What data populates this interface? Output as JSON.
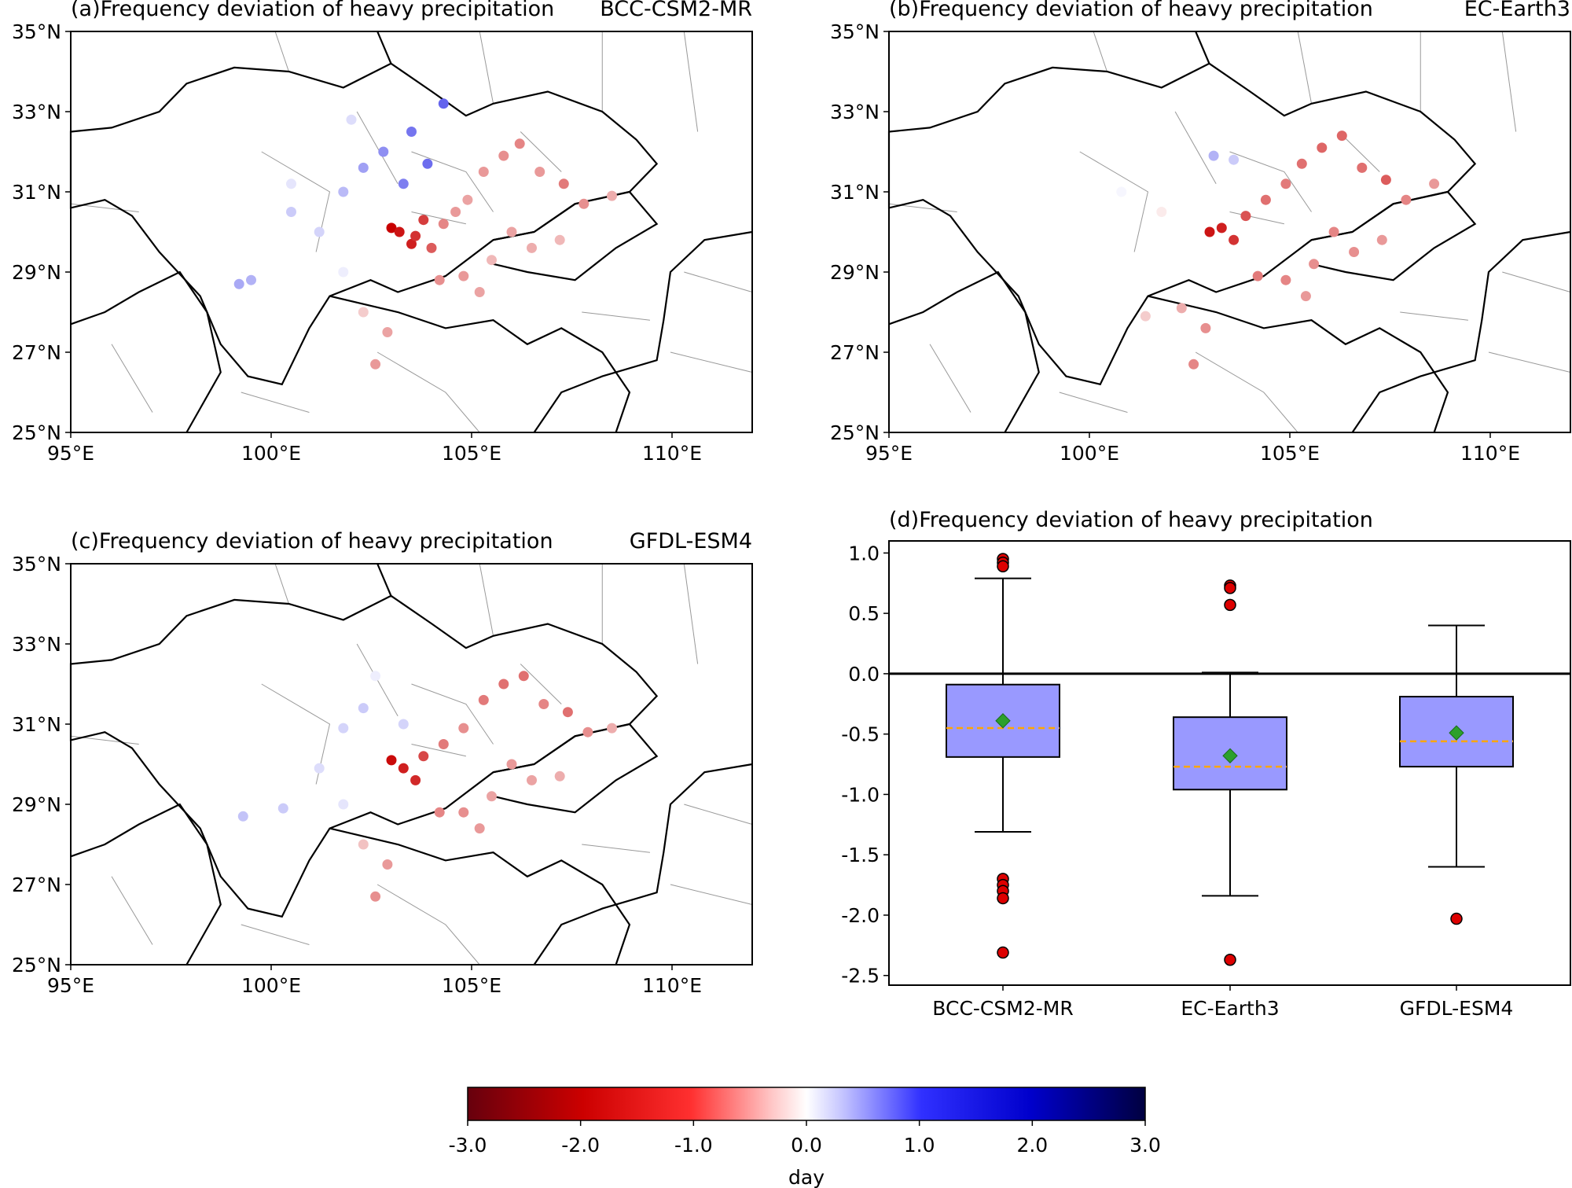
{
  "colors": {
    "red_strong": "#d40000",
    "blue_strong": "#3030e0",
    "box_fill": "#9999ff",
    "median": "#ffa500",
    "mean": "#2ca02c",
    "outlier": "#dd0000"
  },
  "maps": [
    {
      "panel_label": "(a)Frequency deviation of heavy precipitation",
      "model": "BCC-CSM2-MR",
      "lon_ticks": [
        "95°E",
        "100°E",
        "105°E",
        "110°E"
      ],
      "lat_ticks": [
        "25°N",
        "27°N",
        "29°N",
        "31°N",
        "33°N",
        "35°N"
      ]
    },
    {
      "panel_label": "(b)Frequency deviation of heavy precipitation",
      "model": "EC-Earth3",
      "lon_ticks": [
        "95°E",
        "100°E",
        "105°E",
        "110°E"
      ],
      "lat_ticks": [
        "25°N",
        "27°N",
        "29°N",
        "31°N",
        "33°N",
        "35°N"
      ]
    },
    {
      "panel_label": "(c)Frequency deviation of heavy precipitation",
      "model": "GFDL-ESM4",
      "lon_ticks": [
        "95°E",
        "100°E",
        "105°E",
        "110°E"
      ],
      "lat_ticks": [
        "25°N",
        "27°N",
        "29°N",
        "31°N",
        "33°N",
        "35°N"
      ]
    }
  ],
  "chart_data": [
    {
      "type": "scatter",
      "title": "(a)Frequency deviation of heavy precipitation",
      "model": "BCC-CSM2-MR",
      "xlim": [
        95,
        112
      ],
      "ylim": [
        25,
        35
      ],
      "points": [
        {
          "lon": 103.0,
          "lat": 30.1,
          "v": -2.5
        },
        {
          "lon": 103.2,
          "lat": 30.0,
          "v": -2.3
        },
        {
          "lon": 103.5,
          "lat": 29.7,
          "v": -2.2
        },
        {
          "lon": 103.6,
          "lat": 29.9,
          "v": -2.0
        },
        {
          "lon": 103.8,
          "lat": 30.3,
          "v": -1.9
        },
        {
          "lon": 104.0,
          "lat": 29.6,
          "v": -1.6
        },
        {
          "lon": 104.3,
          "lat": 30.2,
          "v": -1.2
        },
        {
          "lon": 104.6,
          "lat": 30.5,
          "v": -1.0
        },
        {
          "lon": 104.9,
          "lat": 30.8,
          "v": -0.9
        },
        {
          "lon": 105.3,
          "lat": 31.5,
          "v": -1.0
        },
        {
          "lon": 105.8,
          "lat": 31.9,
          "v": -1.1
        },
        {
          "lon": 106.2,
          "lat": 32.2,
          "v": -1.2
        },
        {
          "lon": 106.7,
          "lat": 31.5,
          "v": -1.0
        },
        {
          "lon": 107.3,
          "lat": 31.2,
          "v": -1.3
        },
        {
          "lon": 107.8,
          "lat": 30.7,
          "v": -1.1
        },
        {
          "lon": 108.5,
          "lat": 30.9,
          "v": -0.8
        },
        {
          "lon": 106.0,
          "lat": 30.0,
          "v": -0.9
        },
        {
          "lon": 106.5,
          "lat": 29.6,
          "v": -0.8
        },
        {
          "lon": 107.2,
          "lat": 29.8,
          "v": -0.7
        },
        {
          "lon": 105.5,
          "lat": 29.3,
          "v": -0.7
        },
        {
          "lon": 104.8,
          "lat": 28.9,
          "v": -1.0
        },
        {
          "lon": 105.2,
          "lat": 28.5,
          "v": -0.9
        },
        {
          "lon": 104.2,
          "lat": 28.8,
          "v": -1.1
        },
        {
          "lon": 102.9,
          "lat": 27.5,
          "v": -0.9
        },
        {
          "lon": 102.6,
          "lat": 26.7,
          "v": -1.0
        },
        {
          "lon": 102.3,
          "lat": 28.0,
          "v": -0.5
        },
        {
          "lon": 101.8,
          "lat": 29.0,
          "v": 0.2
        },
        {
          "lon": 101.2,
          "lat": 30.0,
          "v": 0.5
        },
        {
          "lon": 100.5,
          "lat": 30.5,
          "v": 0.6
        },
        {
          "lon": 99.5,
          "lat": 28.8,
          "v": 0.9
        },
        {
          "lon": 99.2,
          "lat": 28.7,
          "v": 1.0
        },
        {
          "lon": 101.8,
          "lat": 31.0,
          "v": 0.8
        },
        {
          "lon": 102.3,
          "lat": 31.6,
          "v": 1.1
        },
        {
          "lon": 102.8,
          "lat": 32.0,
          "v": 1.3
        },
        {
          "lon": 103.3,
          "lat": 31.2,
          "v": 1.5
        },
        {
          "lon": 103.5,
          "lat": 32.5,
          "v": 1.6
        },
        {
          "lon": 103.9,
          "lat": 31.7,
          "v": 1.7
        },
        {
          "lon": 104.3,
          "lat": 33.2,
          "v": 1.8
        },
        {
          "lon": 102.0,
          "lat": 32.8,
          "v": 0.4
        },
        {
          "lon": 100.5,
          "lat": 31.2,
          "v": 0.3
        }
      ]
    },
    {
      "type": "scatter",
      "title": "(b)Frequency deviation of heavy precipitation",
      "model": "EC-Earth3",
      "xlim": [
        95,
        112
      ],
      "ylim": [
        25,
        35
      ],
      "points": [
        {
          "lon": 103.0,
          "lat": 30.0,
          "v": -2.3
        },
        {
          "lon": 103.3,
          "lat": 30.1,
          "v": -2.2
        },
        {
          "lon": 103.6,
          "lat": 29.8,
          "v": -2.0
        },
        {
          "lon": 103.9,
          "lat": 30.4,
          "v": -1.7
        },
        {
          "lon": 104.4,
          "lat": 30.8,
          "v": -1.4
        },
        {
          "lon": 104.9,
          "lat": 31.2,
          "v": -1.3
        },
        {
          "lon": 105.3,
          "lat": 31.7,
          "v": -1.4
        },
        {
          "lon": 105.8,
          "lat": 32.1,
          "v": -1.5
        },
        {
          "lon": 106.3,
          "lat": 32.4,
          "v": -1.5
        },
        {
          "lon": 106.8,
          "lat": 31.6,
          "v": -1.4
        },
        {
          "lon": 107.4,
          "lat": 31.3,
          "v": -1.6
        },
        {
          "lon": 107.9,
          "lat": 30.8,
          "v": -1.2
        },
        {
          "lon": 108.6,
          "lat": 31.2,
          "v": -1.0
        },
        {
          "lon": 106.1,
          "lat": 30.0,
          "v": -1.2
        },
        {
          "lon": 106.6,
          "lat": 29.5,
          "v": -1.1
        },
        {
          "lon": 107.3,
          "lat": 29.8,
          "v": -1.0
        },
        {
          "lon": 105.6,
          "lat": 29.2,
          "v": -1.1
        },
        {
          "lon": 104.9,
          "lat": 28.8,
          "v": -1.2
        },
        {
          "lon": 105.4,
          "lat": 28.4,
          "v": -1.0
        },
        {
          "lon": 104.2,
          "lat": 28.9,
          "v": -1.3
        },
        {
          "lon": 102.9,
          "lat": 27.6,
          "v": -1.1
        },
        {
          "lon": 102.6,
          "lat": 26.7,
          "v": -1.2
        },
        {
          "lon": 102.3,
          "lat": 28.1,
          "v": -0.8
        },
        {
          "lon": 101.4,
          "lat": 27.9,
          "v": -0.5
        },
        {
          "lon": 103.1,
          "lat": 31.9,
          "v": 0.9
        },
        {
          "lon": 103.6,
          "lat": 31.8,
          "v": 0.6
        },
        {
          "lon": 101.8,
          "lat": 30.5,
          "v": -0.2
        },
        {
          "lon": 100.8,
          "lat": 31.0,
          "v": 0.1
        }
      ]
    },
    {
      "type": "scatter",
      "title": "(c)Frequency deviation of heavy precipitation",
      "model": "GFDL-ESM4",
      "xlim": [
        95,
        112
      ],
      "ylim": [
        25,
        35
      ],
      "points": [
        {
          "lon": 103.0,
          "lat": 30.1,
          "v": -2.4
        },
        {
          "lon": 103.3,
          "lat": 29.9,
          "v": -2.2
        },
        {
          "lon": 103.6,
          "lat": 29.6,
          "v": -2.1
        },
        {
          "lon": 103.8,
          "lat": 30.2,
          "v": -1.8
        },
        {
          "lon": 104.3,
          "lat": 30.5,
          "v": -1.3
        },
        {
          "lon": 104.8,
          "lat": 30.9,
          "v": -1.1
        },
        {
          "lon": 105.3,
          "lat": 31.6,
          "v": -1.3
        },
        {
          "lon": 105.8,
          "lat": 32.0,
          "v": -1.4
        },
        {
          "lon": 106.3,
          "lat": 32.2,
          "v": -1.4
        },
        {
          "lon": 106.8,
          "lat": 31.5,
          "v": -1.2
        },
        {
          "lon": 107.4,
          "lat": 31.3,
          "v": -1.4
        },
        {
          "lon": 107.9,
          "lat": 30.8,
          "v": -1.1
        },
        {
          "lon": 108.5,
          "lat": 30.9,
          "v": -0.8
        },
        {
          "lon": 106.0,
          "lat": 30.0,
          "v": -1.0
        },
        {
          "lon": 106.5,
          "lat": 29.6,
          "v": -0.9
        },
        {
          "lon": 107.2,
          "lat": 29.7,
          "v": -0.8
        },
        {
          "lon": 105.5,
          "lat": 29.2,
          "v": -0.9
        },
        {
          "lon": 104.8,
          "lat": 28.8,
          "v": -1.1
        },
        {
          "lon": 105.2,
          "lat": 28.4,
          "v": -1.0
        },
        {
          "lon": 104.2,
          "lat": 28.8,
          "v": -1.2
        },
        {
          "lon": 102.9,
          "lat": 27.5,
          "v": -1.0
        },
        {
          "lon": 102.6,
          "lat": 26.7,
          "v": -1.1
        },
        {
          "lon": 102.3,
          "lat": 28.0,
          "v": -0.6
        },
        {
          "lon": 101.8,
          "lat": 29.0,
          "v": 0.3
        },
        {
          "lon": 101.2,
          "lat": 29.9,
          "v": 0.4
        },
        {
          "lon": 100.3,
          "lat": 28.9,
          "v": 0.6
        },
        {
          "lon": 99.3,
          "lat": 28.7,
          "v": 0.7
        },
        {
          "lon": 101.8,
          "lat": 30.9,
          "v": 0.5
        },
        {
          "lon": 102.3,
          "lat": 31.4,
          "v": 0.6
        },
        {
          "lon": 103.3,
          "lat": 31.0,
          "v": 0.5
        },
        {
          "lon": 102.6,
          "lat": 32.2,
          "v": 0.2
        }
      ]
    },
    {
      "type": "box",
      "title": "(d)Frequency deviation of heavy precipitation",
      "categories": [
        "BCC-CSM2-MR",
        "EC-Earth3",
        "GFDL-ESM4"
      ],
      "ylim": [
        -2.5,
        1.1
      ],
      "yticks": [
        1.0,
        0.5,
        0.0,
        -0.5,
        -1.0,
        -1.5,
        -2.0,
        -2.5
      ],
      "ytick_labels": [
        "1.0",
        "0.5",
        "0.0",
        "-0.5",
        "-1.0",
        "-1.5",
        "-2.0",
        "-2.5"
      ],
      "reference_line": 0.0,
      "boxes": [
        {
          "name": "BCC-CSM2-MR",
          "whisker_low": -1.31,
          "q1": -0.69,
          "median": -0.45,
          "q3": -0.09,
          "whisker_high": 0.79,
          "mean": -0.39,
          "outliers": [
            0.95,
            0.92,
            0.89,
            -1.7,
            -1.75,
            -1.8,
            -1.86,
            -2.31
          ]
        },
        {
          "name": "EC-Earth3",
          "whisker_low": -1.84,
          "q1": -0.96,
          "median": -0.77,
          "q3": -0.36,
          "whisker_high": 0.01,
          "mean": -0.68,
          "outliers": [
            0.73,
            0.71,
            0.57,
            -2.37
          ]
        },
        {
          "name": "GFDL-ESM4",
          "whisker_low": -1.6,
          "q1": -0.77,
          "median": -0.56,
          "q3": -0.19,
          "whisker_high": 0.4,
          "mean": -0.49,
          "outliers": [
            -2.03
          ]
        }
      ]
    },
    {
      "type": "colorbar",
      "ticks": [
        "-3.0",
        "-2.0",
        "-1.0",
        "0.0",
        "1.0",
        "2.0",
        "3.0"
      ],
      "range": [
        -3,
        3
      ],
      "label": "day"
    }
  ]
}
